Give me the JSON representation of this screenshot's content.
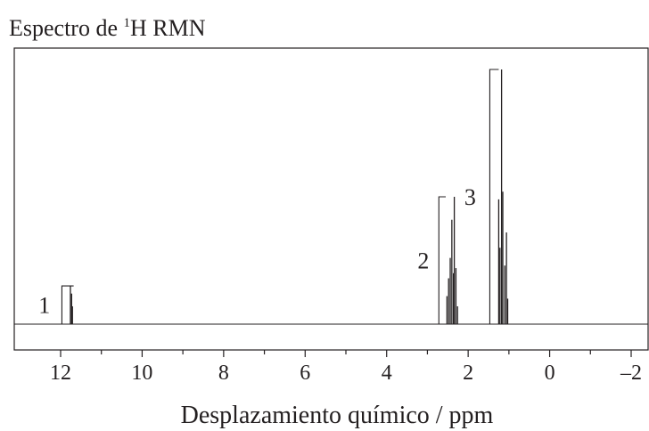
{
  "chart_data": {
    "type": "line",
    "title": {
      "prefix": "Espectro de ",
      "superscript": "1",
      "suffix": "H RMN"
    },
    "xlabel": "Desplazamiento químico / ppm",
    "ylabel": "",
    "x_reversed": true,
    "xlim": [
      13.2,
      -2.3
    ],
    "ylim": [
      0,
      1
    ],
    "grid": false,
    "major_ticks": [
      12,
      10,
      8,
      6,
      4,
      2,
      0,
      -2
    ],
    "major_tick_labels": [
      "12",
      "10",
      "8",
      "6",
      "4",
      "2",
      "0",
      "–2"
    ],
    "minor_ticks": [
      11,
      9,
      7,
      5,
      3,
      1,
      -1
    ],
    "series": [
      {
        "peaks": [
          {
            "x": 11.76,
            "y": 0.15
          },
          {
            "x": 11.73,
            "y": 0.12
          },
          {
            "x": 11.71,
            "y": 0.07
          },
          {
            "x": 2.52,
            "y": 0.11
          },
          {
            "x": 2.48,
            "y": 0.18
          },
          {
            "x": 2.44,
            "y": 0.26
          },
          {
            "x": 2.4,
            "y": 0.41
          },
          {
            "x": 2.36,
            "y": 0.2
          },
          {
            "x": 2.34,
            "y": 0.5
          },
          {
            "x": 2.3,
            "y": 0.22
          },
          {
            "x": 2.26,
            "y": 0.07
          },
          {
            "x": 1.25,
            "y": 0.49
          },
          {
            "x": 1.22,
            "y": 0.3
          },
          {
            "x": 1.18,
            "y": 1.0
          },
          {
            "x": 1.15,
            "y": 0.52
          },
          {
            "x": 1.1,
            "y": 0.23
          },
          {
            "x": 1.06,
            "y": 0.36
          },
          {
            "x": 1.03,
            "y": 0.1
          }
        ]
      }
    ],
    "integrals": [
      {
        "label": "1",
        "x_start": 12.1,
        "x_end": 11.68,
        "height": 0.15,
        "label_x": 12.4
      },
      {
        "label": "2",
        "x_start": 2.85,
        "x_end": 2.55,
        "height": 0.5,
        "label_x": 3.1
      },
      {
        "label": "3",
        "x_start": 1.6,
        "x_end": 1.25,
        "height": 1.0,
        "label_x": 1.95
      }
    ]
  }
}
